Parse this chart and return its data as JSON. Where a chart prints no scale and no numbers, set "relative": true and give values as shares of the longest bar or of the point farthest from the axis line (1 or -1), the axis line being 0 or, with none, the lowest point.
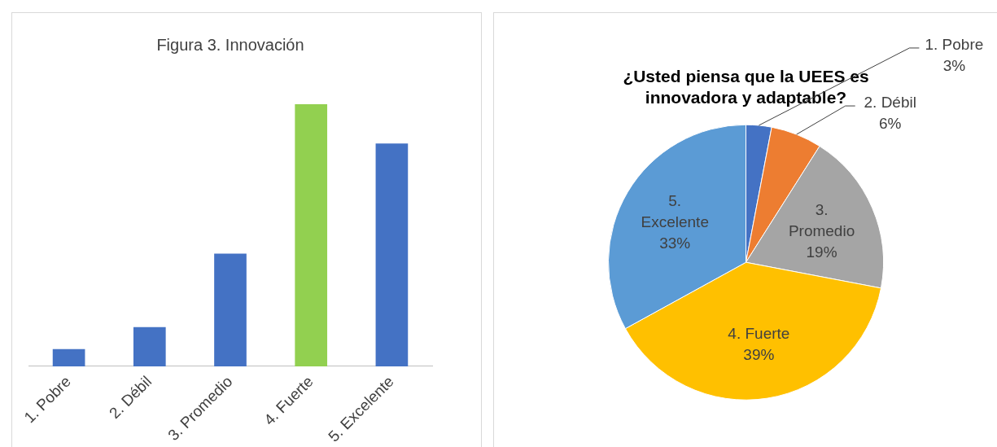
{
  "chart_data": [
    {
      "type": "bar",
      "title": "Figura 3. Innovación",
      "relative": true,
      "categories": [
        "1. Pobre",
        "2. Débil",
        "3. Promedio",
        "4. Fuerte",
        "5. Excelente"
      ],
      "values": [
        0.066,
        0.15,
        0.43,
        1,
        0.85
      ],
      "colors": [
        "#4472c4",
        "#4472c4",
        "#4472c4",
        "#92d050",
        "#4472c4"
      ],
      "grid": false,
      "legend": false
    },
    {
      "type": "pie",
      "title": "¿Usted piensa que la UEES es innovadora y adaptable?",
      "categories": [
        "1. Pobre",
        "2. Débil",
        "3. Promedio",
        "4. Fuerte",
        "5. Excelente"
      ],
      "values": [
        3,
        6,
        19,
        39,
        33
      ],
      "colors": [
        "#4472c4",
        "#ed7d31",
        "#a5a5a5",
        "#ffc000",
        "#5b9bd5"
      ],
      "value_labels": [
        "3%",
        "6%",
        "19%",
        "39%",
        "33%"
      ],
      "legend": false
    }
  ]
}
